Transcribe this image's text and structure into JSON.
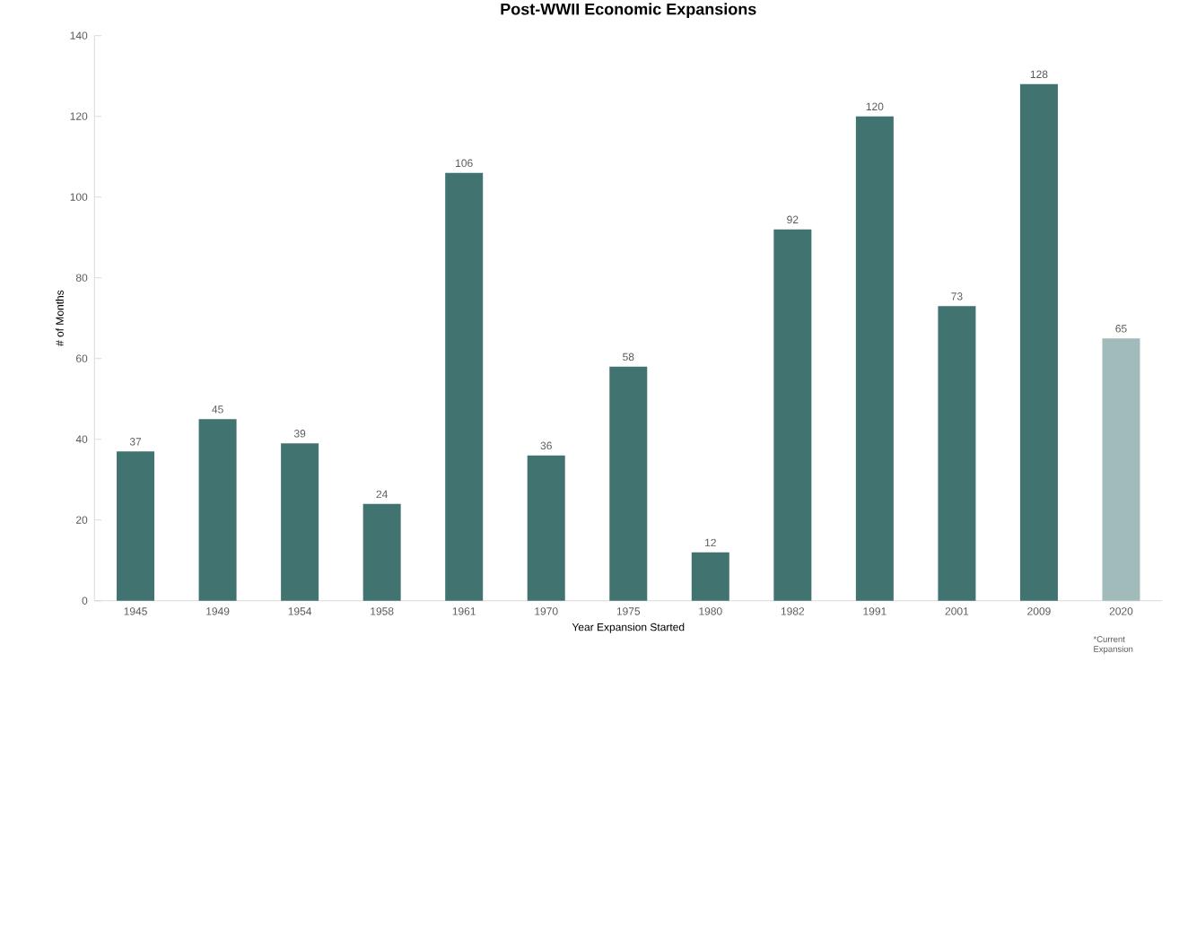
{
  "chart_data": {
    "type": "bar",
    "title": "Post-WWII Economic Expansions",
    "xlabel": "Year Expansion Started",
    "ylabel": "# of Months",
    "categories": [
      "1945",
      "1949",
      "1954",
      "1958",
      "1961",
      "1970",
      "1975",
      "1980",
      "1982",
      "1991",
      "2001",
      "2009",
      "2020"
    ],
    "values": [
      37,
      45,
      39,
      24,
      106,
      36,
      58,
      12,
      92,
      120,
      73,
      128,
      65
    ],
    "colors": [
      "#417371",
      "#417371",
      "#417371",
      "#417371",
      "#417371",
      "#417371",
      "#417371",
      "#417371",
      "#417371",
      "#417371",
      "#417371",
      "#417371",
      "#a0bbb9"
    ],
    "ylim": [
      0,
      140
    ],
    "yticks": [
      0,
      20,
      40,
      60,
      80,
      100,
      120,
      140
    ],
    "data_labels": true,
    "annotations": [
      "*Current Expansion"
    ]
  }
}
